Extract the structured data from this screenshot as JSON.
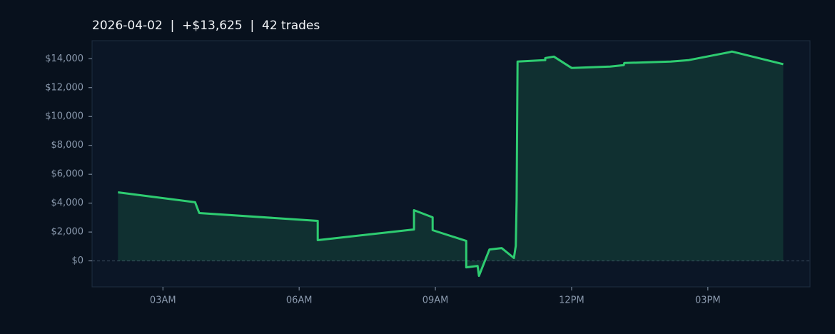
{
  "chart_data": {
    "type": "area-line",
    "title": "2026-04-02  |  +$13,625  |  42 trades",
    "color": "#2ecc71",
    "x": [
      2.01,
      3.71,
      3.8,
      6.41,
      6.41,
      8.53,
      8.53,
      8.94,
      8.94,
      9.68,
      9.68,
      9.93,
      9.96,
      10.19,
      10.46,
      10.73,
      10.77,
      10.79,
      10.81,
      11.42,
      11.42,
      11.61,
      12.0,
      12.85,
      13.15,
      13.16,
      14.18,
      14.58,
      15.47,
      15.53,
      16.66
    ],
    "values": [
      4750,
      4060,
      3315,
      2770,
      1435,
      2180,
      3515,
      3020,
      2130,
      1385,
      -445,
      -345,
      -1040,
      790,
      890,
      200,
      1040,
      4200,
      13805,
      13905,
      14050,
      14150,
      13360,
      13460,
      13560,
      13705,
      13805,
      13905,
      14450,
      14500,
      13625
    ],
    "xlim": [
      1.44,
      17.25
    ],
    "xticks": [
      {
        "value": 3,
        "label": "03AM"
      },
      {
        "value": 6,
        "label": "06AM"
      },
      {
        "value": 9,
        "label": "09AM"
      },
      {
        "value": 12,
        "label": "12PM"
      },
      {
        "value": 15,
        "label": "03PM"
      }
    ],
    "ylim": [
      -1800,
      15250
    ],
    "yticks": [
      {
        "value": 0,
        "label": "$0"
      },
      {
        "value": 2000,
        "label": "$2,000"
      },
      {
        "value": 4000,
        "label": "$4,000"
      },
      {
        "value": 6000,
        "label": "$6,000"
      },
      {
        "value": 8000,
        "label": "$8,000"
      },
      {
        "value": 10000,
        "label": "$10,000"
      },
      {
        "value": 12000,
        "label": "$12,000"
      },
      {
        "value": 14000,
        "label": "$14,000"
      }
    ]
  }
}
